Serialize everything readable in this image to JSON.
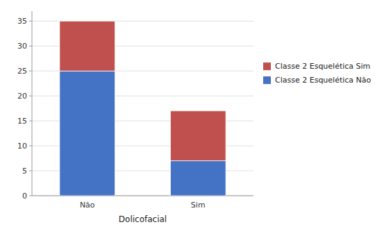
{
  "chart_data": {
    "type": "bar",
    "stacked": true,
    "xlabel": "Dolicofacial",
    "categories": [
      "Não",
      "Sim"
    ],
    "series": [
      {
        "name": "Classe 2 Esquelética Não",
        "color": "#4472C4",
        "values": [
          25,
          7
        ]
      },
      {
        "name": "Classe 2 Esquelética Sim",
        "color": "#C0504D",
        "values": [
          10,
          10
        ]
      }
    ],
    "ylim": [
      0,
      37
    ],
    "yticks": [
      0,
      5,
      10,
      15,
      20,
      25,
      30,
      35
    ],
    "grid": true,
    "legend": "right"
  }
}
